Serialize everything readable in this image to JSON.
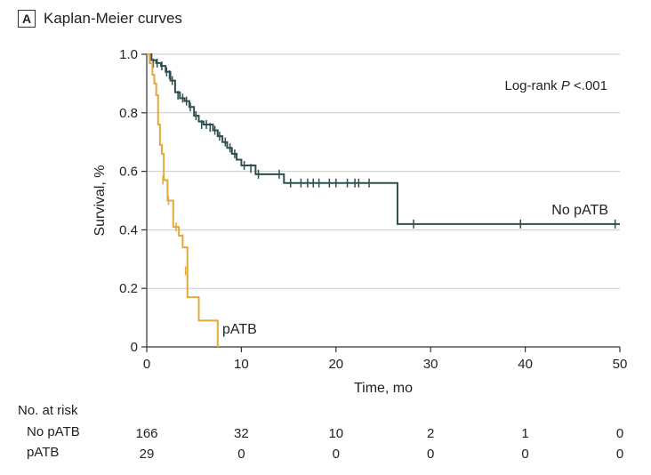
{
  "panel": {
    "letter": "A",
    "title": "Kaplan-Meier curves"
  },
  "chart_data": {
    "type": "line",
    "title": "Kaplan-Meier curves",
    "xlabel": "Time, mo",
    "ylabel": "Survival, %",
    "xlim": [
      0,
      50
    ],
    "ylim": [
      0,
      1
    ],
    "xticks": [
      0,
      10,
      20,
      30,
      40,
      50
    ],
    "xtick_labels": [
      "0",
      "10",
      "20",
      "30",
      "40",
      "50"
    ],
    "yticks": [
      0,
      0.2,
      0.4,
      0.6,
      0.8,
      1.0
    ],
    "ytick_labels": [
      "0",
      "0.2",
      "0.4",
      "0.6",
      "0.8",
      "1.0"
    ],
    "grid": "horizontal",
    "annotation": {
      "prefix": "Log-rank ",
      "italic": "P",
      "suffix": " <.001"
    },
    "series": [
      {
        "name": "No pATB",
        "color": "#2d4f4d",
        "steps": [
          [
            0,
            1.0
          ],
          [
            0.5,
            0.98
          ],
          [
            1.0,
            0.97
          ],
          [
            1.5,
            0.96
          ],
          [
            2.0,
            0.94
          ],
          [
            2.5,
            0.91
          ],
          [
            3.0,
            0.87
          ],
          [
            3.5,
            0.85
          ],
          [
            4.0,
            0.84
          ],
          [
            4.5,
            0.82
          ],
          [
            5.0,
            0.79
          ],
          [
            5.5,
            0.77
          ],
          [
            6.0,
            0.76
          ],
          [
            7.0,
            0.74
          ],
          [
            7.5,
            0.72
          ],
          [
            8.0,
            0.7
          ],
          [
            8.5,
            0.68
          ],
          [
            9.0,
            0.66
          ],
          [
            9.5,
            0.64
          ],
          [
            10.0,
            0.62
          ],
          [
            11.5,
            0.59
          ],
          [
            14.5,
            0.56
          ],
          [
            26.5,
            0.42
          ],
          [
            50,
            0.42
          ]
        ],
        "censor": [
          [
            0.7,
            0.97
          ],
          [
            1.1,
            0.97
          ],
          [
            1.6,
            0.96
          ],
          [
            2.1,
            0.94
          ],
          [
            2.4,
            0.93
          ],
          [
            2.7,
            0.91
          ],
          [
            3.3,
            0.86
          ],
          [
            3.8,
            0.85
          ],
          [
            4.2,
            0.84
          ],
          [
            4.6,
            0.82
          ],
          [
            5.2,
            0.79
          ],
          [
            5.8,
            0.76
          ],
          [
            6.3,
            0.76
          ],
          [
            6.7,
            0.75
          ],
          [
            7.2,
            0.74
          ],
          [
            7.7,
            0.72
          ],
          [
            8.3,
            0.7
          ],
          [
            8.8,
            0.68
          ],
          [
            9.3,
            0.66
          ],
          [
            10.3,
            0.62
          ],
          [
            11.0,
            0.61
          ],
          [
            11.8,
            0.59
          ],
          [
            14.0,
            0.59
          ],
          [
            15.2,
            0.56
          ],
          [
            16.3,
            0.56
          ],
          [
            17.0,
            0.56
          ],
          [
            17.6,
            0.56
          ],
          [
            18.2,
            0.56
          ],
          [
            19.3,
            0.56
          ],
          [
            20.0,
            0.56
          ],
          [
            21.2,
            0.56
          ],
          [
            22.0,
            0.56
          ],
          [
            22.4,
            0.56
          ],
          [
            23.5,
            0.56
          ],
          [
            28.2,
            0.42
          ],
          [
            39.5,
            0.42
          ],
          [
            49.5,
            0.42
          ]
        ],
        "end_label": "No pATB"
      },
      {
        "name": "pATB",
        "color": "#e3a93b",
        "steps": [
          [
            0,
            1.0
          ],
          [
            0.3,
            0.97
          ],
          [
            0.6,
            0.93
          ],
          [
            0.8,
            0.9
          ],
          [
            1.0,
            0.86
          ],
          [
            1.2,
            0.76
          ],
          [
            1.4,
            0.69
          ],
          [
            1.6,
            0.66
          ],
          [
            1.8,
            0.57
          ],
          [
            2.2,
            0.5
          ],
          [
            2.8,
            0.41
          ],
          [
            3.4,
            0.38
          ],
          [
            3.8,
            0.34
          ],
          [
            4.3,
            0.17
          ],
          [
            5.5,
            0.09
          ],
          [
            7.5,
            0.0
          ]
        ],
        "censor": [
          [
            1.7,
            0.57
          ],
          [
            2.3,
            0.5
          ],
          [
            3.1,
            0.41
          ],
          [
            3.8,
            0.37
          ],
          [
            4.1,
            0.26
          ]
        ],
        "end_label": "pATB"
      }
    ],
    "risk_table": {
      "title": "No. at risk",
      "times": [
        0,
        10,
        20,
        30,
        40,
        50
      ],
      "rows": [
        {
          "label": "No pATB",
          "values": [
            "166",
            "32",
            "10",
            "2",
            "1",
            "0"
          ]
        },
        {
          "label": "pATB",
          "values": [
            "29",
            "0",
            "0",
            "0",
            "0",
            "0"
          ]
        }
      ]
    }
  }
}
